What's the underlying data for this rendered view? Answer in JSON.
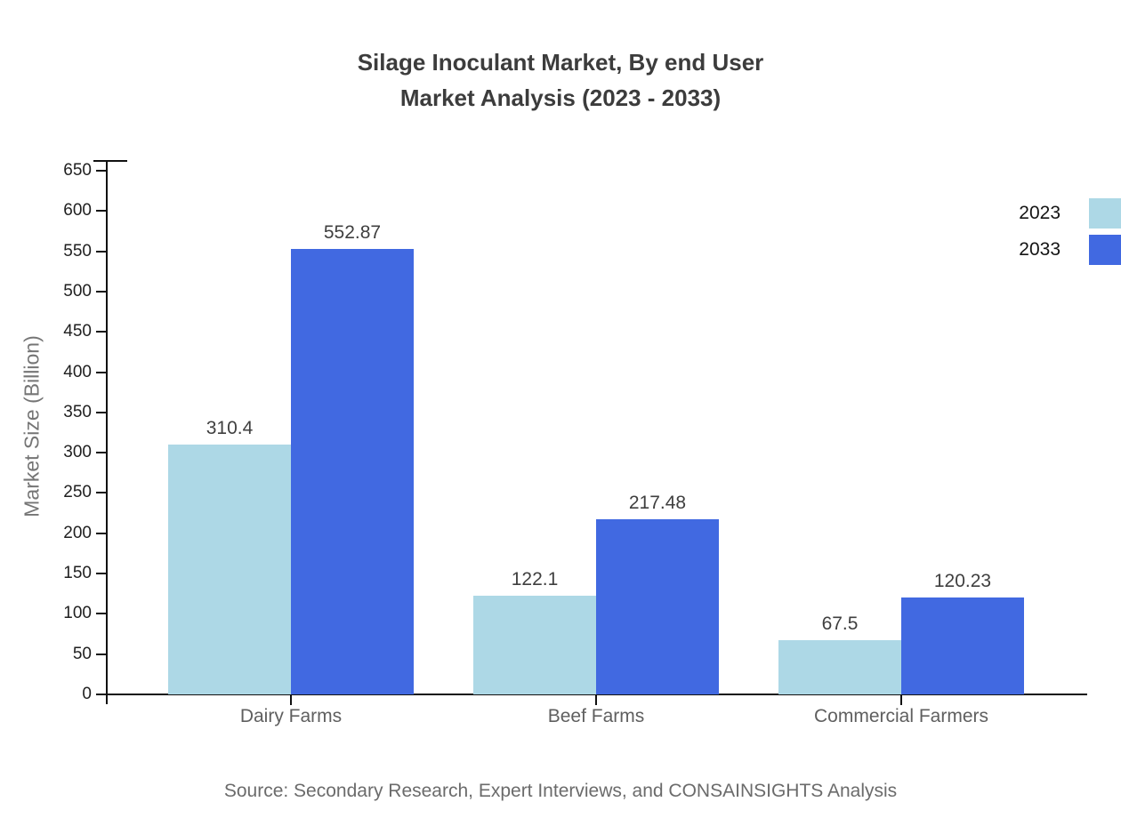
{
  "title": {
    "line1": "Silage Inoculant Market, By end User",
    "line2": "Market Analysis (2023 - 2033)"
  },
  "chart_data": {
    "type": "bar",
    "title": "Silage Inoculant Market, By end User Market Analysis (2023 - 2033)",
    "categories": [
      "Dairy Farms",
      "Beef Farms",
      "Commercial Farmers"
    ],
    "series": [
      {
        "name": "2023",
        "color": "#add8e6",
        "values": [
          310.4,
          122.1,
          67.5
        ]
      },
      {
        "name": "2033",
        "color": "#4169e1",
        "values": [
          552.87,
          217.48,
          120.23
        ]
      }
    ],
    "xlabel": "",
    "ylabel": "Market Size (Billion)",
    "ylim": [
      0,
      650
    ],
    "yticks": [
      0,
      50,
      100,
      150,
      200,
      250,
      300,
      350,
      400,
      450,
      500,
      550,
      600,
      650
    ],
    "grid": false,
    "legend_position": "top-right",
    "data_labels_shown": true
  },
  "source": "Source: Secondary Research, Expert Interviews, and CONSAINSIGHTS Analysis"
}
